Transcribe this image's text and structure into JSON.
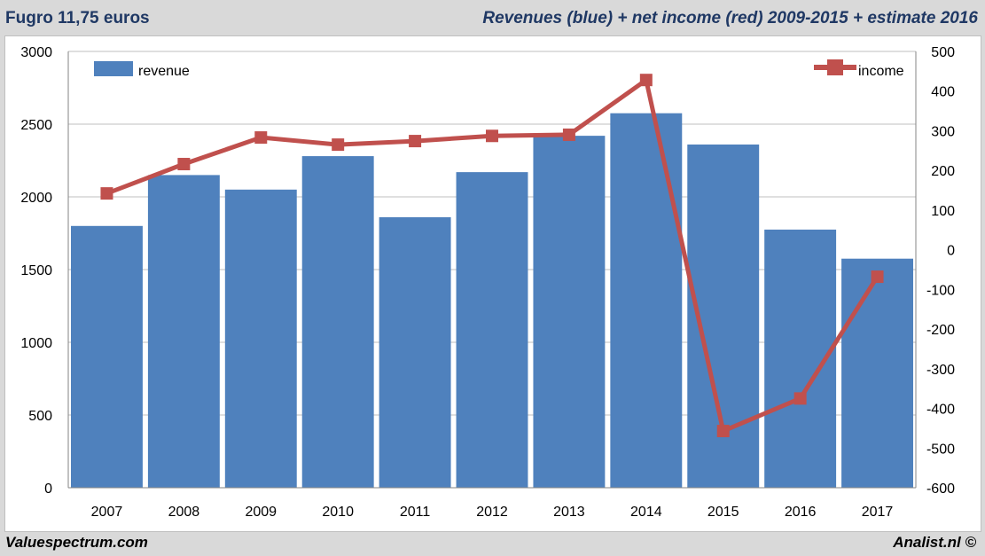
{
  "header": {
    "left": "Fugro 11,75 euros",
    "right": "Revenues (blue) + net income (red) 2009-2015 + estimate 2016"
  },
  "footer": {
    "left": "Valuespectrum.com",
    "right": "Analist.nl ©"
  },
  "chart_data": {
    "type": "bar+line",
    "categories": [
      "2007",
      "2008",
      "2009",
      "2010",
      "2011",
      "2012",
      "2013",
      "2014",
      "2015",
      "2016",
      "2017"
    ],
    "series": [
      {
        "name": "revenue",
        "type": "bar",
        "axis": "left",
        "color": "#4f81bd",
        "values": [
          1800,
          2150,
          2050,
          2280,
          1860,
          2170,
          2420,
          2575,
          2360,
          1775,
          1575
        ]
      },
      {
        "name": "income",
        "type": "line",
        "axis": "right",
        "color": "#c0504d",
        "values": [
          142,
          216,
          283,
          265,
          274,
          287,
          290,
          428,
          -457,
          -375,
          -68
        ]
      }
    ],
    "y_left": {
      "min": 0,
      "max": 3000,
      "ticks": [
        0,
        500,
        1000,
        1500,
        2000,
        2500,
        3000
      ]
    },
    "y_right": {
      "min": -600,
      "max": 500,
      "ticks": [
        -600,
        -500,
        -400,
        -300,
        -200,
        -100,
        0,
        100,
        200,
        300,
        400,
        500
      ]
    },
    "grid": true,
    "legend": {
      "revenue": "top-left",
      "income": "top-right"
    }
  }
}
